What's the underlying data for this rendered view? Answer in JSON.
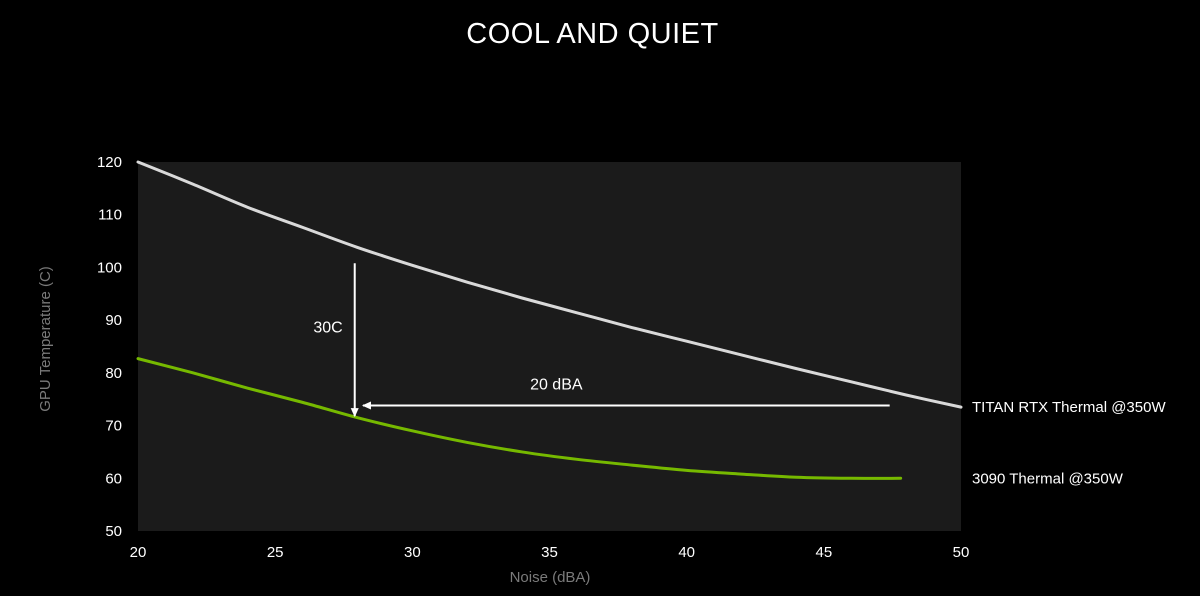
{
  "chart_data": {
    "type": "line",
    "title": "COOL AND QUIET",
    "xlabel": "Noise (dBA)",
    "ylabel": "GPU Temperature (C)",
    "xlim": [
      20,
      50
    ],
    "ylim": [
      50,
      120
    ],
    "xticks": [
      20,
      25,
      30,
      35,
      40,
      45,
      50
    ],
    "yticks": [
      50,
      60,
      70,
      80,
      90,
      100,
      110,
      120
    ],
    "grid": false,
    "series": [
      {
        "name": "TITAN RTX Thermal @350W",
        "color": "#d9d9d9",
        "x": [
          20,
          22,
          24,
          26,
          28,
          30,
          32,
          34,
          36,
          38,
          40,
          42,
          44,
          46,
          48,
          50
        ],
        "y": [
          120,
          115.8,
          111.4,
          107.6,
          103.8,
          100.4,
          97.2,
          94.2,
          91.4,
          88.6,
          86.0,
          83.4,
          80.8,
          78.3,
          75.8,
          73.5
        ]
      },
      {
        "name": "3090 Thermal @350W",
        "color": "#76b900",
        "x": [
          20,
          22,
          24,
          26,
          28,
          30,
          32,
          34,
          36,
          38,
          40,
          42,
          44,
          46,
          47.8
        ],
        "y": [
          82.7,
          80.0,
          77.1,
          74.4,
          71.5,
          69.0,
          66.8,
          65.0,
          63.6,
          62.5,
          61.5,
          60.8,
          60.2,
          60.0,
          60.0
        ]
      }
    ],
    "annotations": [
      {
        "text": "30C",
        "arrow": "vertical",
        "x": 27.9,
        "y_from": 100.8,
        "y_to": 71.8
      },
      {
        "text": "20 dBA",
        "arrow": "horizontal",
        "y": 73.8,
        "x_from": 47.4,
        "x_to": 28.2
      }
    ]
  }
}
